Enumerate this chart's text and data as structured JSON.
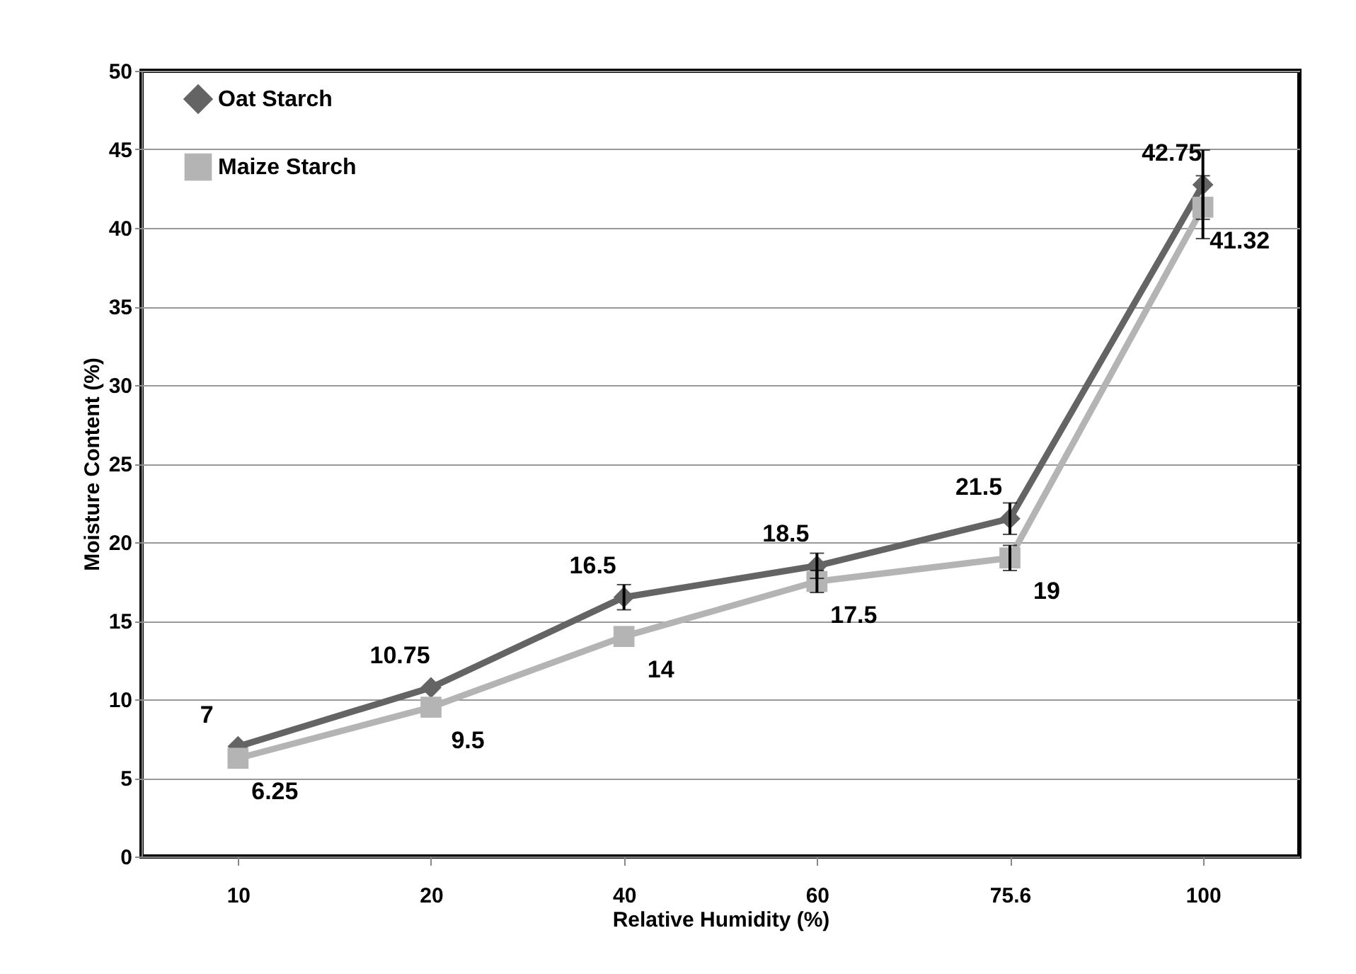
{
  "chart_data": {
    "type": "line",
    "xlabel": "Relative Humidity (%)",
    "ylabel": "Moisture Content (%)",
    "categories": [
      "10",
      "20",
      "40",
      "60",
      "75.6",
      "100"
    ],
    "ylim": [
      0,
      50
    ],
    "yticks": [
      0,
      5,
      10,
      15,
      20,
      25,
      30,
      35,
      40,
      45,
      50
    ],
    "grid": "y",
    "legend": "top left",
    "data_labels": true,
    "series": [
      {
        "name": "Oat Starch",
        "color": "#646464",
        "marker": "diamond",
        "values": [
          7,
          10.75,
          16.5,
          18.5,
          21.5,
          42.75
        ],
        "errors": [
          null,
          null,
          0.8,
          0.8,
          1,
          2.2
        ]
      },
      {
        "name": "Maize Starch",
        "color": "#b4b4b4",
        "marker": "square",
        "values": [
          6.25,
          9.5,
          14,
          17.5,
          19,
          41.32
        ],
        "errors": [
          null,
          null,
          null,
          0.7,
          0.8,
          2
        ]
      }
    ]
  }
}
